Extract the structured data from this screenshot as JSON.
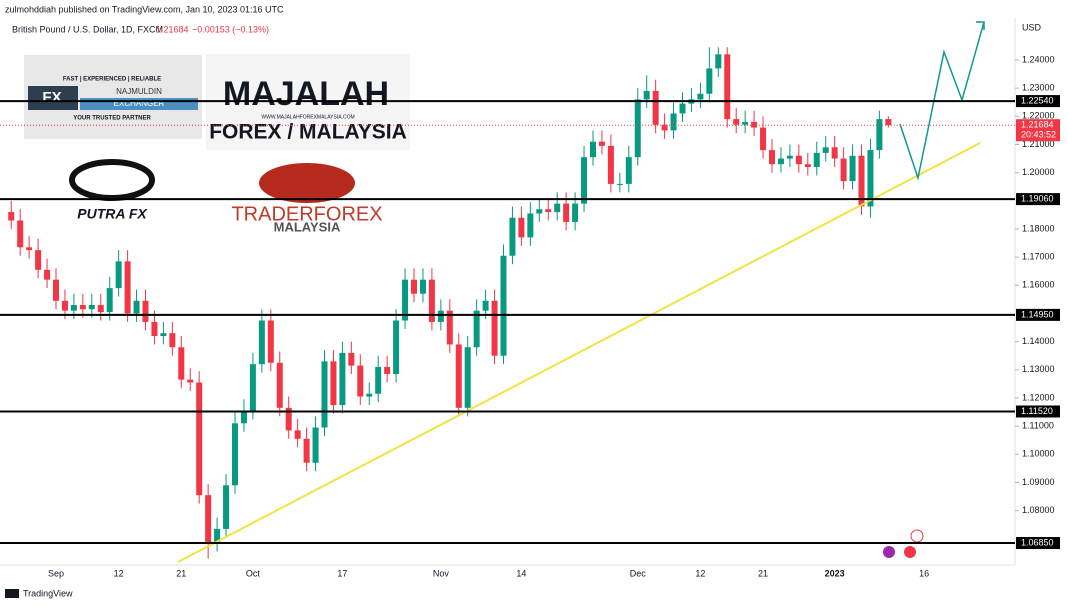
{
  "chart_data": {
    "type": "candlestick",
    "publisher": "zulmohddiah published on TradingView.com, Jan 10, 2023 01:16 UTC",
    "symbol": "British Pound / U.S. Dollar, 1D, FXCM",
    "change": "−0.00153 (−0.13%)",
    "currency": "USD",
    "countdown": "20:43:52",
    "footer": "TradingView",
    "up_color": "#089981",
    "down_color": "#f23645",
    "categories": [
      null,
      null,
      null,
      null,
      null,
      "Sep",
      null,
      null,
      null,
      null,
      null,
      null,
      "12",
      null,
      null,
      null,
      null,
      null,
      null,
      "21",
      null,
      null,
      null,
      null,
      null,
      null,
      null,
      "Oct",
      null,
      null,
      null,
      null,
      null,
      null,
      null,
      null,
      null,
      "17",
      null,
      null,
      null,
      null,
      null,
      null,
      null,
      null,
      null,
      null,
      "Nov",
      null,
      null,
      null,
      null,
      null,
      null,
      null,
      null,
      "14",
      null,
      null,
      null,
      null,
      null,
      null,
      null,
      null,
      null,
      null,
      null,
      null,
      "Dec",
      null,
      null,
      null,
      null,
      null,
      null,
      "12",
      null,
      null,
      null,
      null,
      null,
      null,
      "21",
      null,
      null,
      null,
      null,
      null,
      null,
      null,
      "2023",
      null,
      null,
      null,
      null,
      null,
      null,
      null,
      null,
      null,
      "16",
      null,
      null,
      null,
      null,
      null,
      null,
      null,
      null,
      null
    ],
    "open": [
      1.186,
      1.183,
      1.1735,
      1.1725,
      1.1655,
      1.162,
      1.1545,
      1.151,
      1.153,
      1.1515,
      1.153,
      1.1505,
      1.159,
      1.1685,
      1.15,
      1.1545,
      1.147,
      1.142,
      1.143,
      1.138,
      1.1265,
      1.1255,
      1.0855,
      1.0685,
      1.0735,
      1.089,
      1.111,
      1.1155,
      1.132,
      1.1475,
      1.1325,
      1.1165,
      1.1085,
      1.1055,
      1.097,
      1.1095,
      1.133,
      1.1175,
      1.136,
      1.1315,
      1.1205,
      1.1215,
      1.131,
      1.1285,
      1.1475,
      1.162,
      1.157,
      1.162,
      1.147,
      1.151,
      1.139,
      1.1165,
      1.138,
      1.151,
      1.1545,
      1.135,
      1.1705,
      1.184,
      1.177,
      1.1855,
      1.187,
      1.186,
      1.189,
      1.1825,
      1.189,
      1.2055,
      1.211,
      1.2095,
      1.196,
      1.196,
      1.2055,
      1.226,
      1.229,
      1.217,
      1.215,
      1.221,
      1.2245,
      1.226,
      1.228,
      1.237,
      1.242,
      1.219,
      1.217,
      1.218,
      1.216,
      1.208,
      1.203,
      1.205,
      1.206,
      1.203,
      1.202,
      1.207,
      1.209,
      1.205,
      1.197,
      1.206,
      1.188,
      1.208,
      1.219,
      null,
      null,
      null,
      null,
      null,
      null,
      null,
      null,
      null,
      null,
      null,
      null,
      null
    ],
    "high": [
      1.19,
      1.187,
      1.1775,
      1.1765,
      1.1695,
      1.166,
      1.1585,
      1.157,
      1.157,
      1.157,
      1.157,
      1.163,
      1.1725,
      1.1725,
      1.1585,
      1.1585,
      1.151,
      1.147,
      1.147,
      1.142,
      1.1305,
      1.1295,
      1.0895,
      1.0775,
      1.093,
      1.115,
      1.1195,
      1.136,
      1.1515,
      1.1515,
      1.1365,
      1.1205,
      1.1125,
      1.1095,
      1.1135,
      1.137,
      1.137,
      1.14,
      1.14,
      1.1355,
      1.1255,
      1.135,
      1.135,
      1.1515,
      1.166,
      1.166,
      1.166,
      1.166,
      1.155,
      1.155,
      1.143,
      1.142,
      1.155,
      1.1585,
      1.1585,
      1.1745,
      1.188,
      1.188,
      1.1895,
      1.191,
      1.191,
      1.193,
      1.193,
      1.193,
      1.2095,
      1.215,
      1.215,
      1.2135,
      1.2,
      1.2095,
      1.23,
      1.2345,
      1.233,
      1.221,
      1.225,
      1.2285,
      1.23,
      1.232,
      1.2445,
      1.2445,
      1.2445,
      1.223,
      1.222,
      1.222,
      1.22,
      1.212,
      1.209,
      1.21,
      1.21,
      1.207,
      1.211,
      1.213,
      1.213,
      1.209,
      1.21,
      1.21,
      1.212,
      1.222,
      1.22,
      null,
      null,
      null,
      null,
      null,
      null,
      null,
      null,
      null,
      null,
      null,
      null,
      null
    ],
    "low": [
      1.18,
      1.1705,
      1.1695,
      1.1625,
      1.159,
      1.1515,
      1.148,
      1.148,
      1.1485,
      1.1485,
      1.1475,
      1.1475,
      1.156,
      1.147,
      1.147,
      1.144,
      1.139,
      1.139,
      1.135,
      1.1235,
      1.1225,
      1.0825,
      1.063,
      1.0655,
      1.0705,
      1.086,
      1.108,
      1.1125,
      1.129,
      1.1295,
      1.1135,
      1.1055,
      1.1025,
      1.094,
      1.094,
      1.1065,
      1.1145,
      1.1145,
      1.1285,
      1.1175,
      1.1175,
      1.1185,
      1.1255,
      1.1255,
      1.1445,
      1.154,
      1.154,
      1.144,
      1.144,
      1.136,
      1.1135,
      1.1135,
      1.135,
      1.148,
      1.132,
      1.132,
      1.1675,
      1.174,
      1.174,
      1.1825,
      1.183,
      1.183,
      1.1795,
      1.1795,
      1.186,
      1.2025,
      1.2065,
      1.193,
      1.193,
      1.193,
      1.2025,
      1.223,
      1.214,
      1.212,
      1.212,
      1.218,
      1.2215,
      1.223,
      1.225,
      1.234,
      1.216,
      1.214,
      1.214,
      1.213,
      1.205,
      1.2,
      1.2,
      1.202,
      1.2,
      1.199,
      1.199,
      1.204,
      1.202,
      1.194,
      1.194,
      1.185,
      1.184,
      1.205,
      1.216,
      null,
      null,
      null,
      null,
      null,
      null,
      null,
      null,
      null,
      null,
      null,
      null,
      null
    ],
    "close": [
      1.183,
      1.1735,
      1.1725,
      1.1655,
      1.162,
      1.1545,
      1.151,
      1.153,
      1.1515,
      1.153,
      1.1505,
      1.159,
      1.1685,
      1.15,
      1.1545,
      1.147,
      1.142,
      1.143,
      1.138,
      1.1265,
      1.1255,
      1.0855,
      1.0685,
      1.0735,
      1.089,
      1.111,
      1.1155,
      1.132,
      1.1475,
      1.1325,
      1.1165,
      1.1085,
      1.1055,
      1.097,
      1.1095,
      1.133,
      1.1175,
      1.136,
      1.1315,
      1.1205,
      1.1215,
      1.131,
      1.1285,
      1.1475,
      1.162,
      1.157,
      1.162,
      1.147,
      1.151,
      1.139,
      1.1165,
      1.138,
      1.151,
      1.1545,
      1.135,
      1.1705,
      1.184,
      1.177,
      1.1855,
      1.187,
      1.186,
      1.189,
      1.1825,
      1.189,
      1.2055,
      1.211,
      1.2095,
      1.196,
      1.196,
      1.2055,
      1.226,
      1.229,
      1.217,
      1.215,
      1.221,
      1.2245,
      1.226,
      1.228,
      1.237,
      1.242,
      1.219,
      1.217,
      1.218,
      1.216,
      1.208,
      1.203,
      1.205,
      1.206,
      1.203,
      1.202,
      1.207,
      1.209,
      1.205,
      1.197,
      1.206,
      1.188,
      1.208,
      1.219,
      1.21684,
      null,
      null,
      null,
      null,
      null,
      null,
      null,
      null,
      null,
      null,
      null,
      null,
      null
    ],
    "ylim": [
      1.0607,
      1.2549
    ],
    "yticks": [
      {
        "value": 1.24,
        "label": "1.24000"
      },
      {
        "value": 1.23,
        "label": "1.23000"
      },
      {
        "value": 1.22,
        "label": "1.22000"
      },
      {
        "value": 1.21,
        "label": "1.21000"
      },
      {
        "value": 1.2,
        "label": "1.20000"
      },
      {
        "value": 1.18,
        "label": "1.18000"
      },
      {
        "value": 1.17,
        "label": "1.17000"
      },
      {
        "value": 1.16,
        "label": "1.16000"
      },
      {
        "value": 1.14,
        "label": "1.14000"
      },
      {
        "value": 1.13,
        "label": "1.13000"
      },
      {
        "value": 1.12,
        "label": "1.12000"
      },
      {
        "value": 1.11,
        "label": "1.11000"
      },
      {
        "value": 1.1,
        "label": "1.10000"
      },
      {
        "value": 1.09,
        "label": "1.09000"
      },
      {
        "value": 1.08,
        "label": "1.08000"
      }
    ],
    "levels": [
      {
        "value": 1.2254,
        "label": "1.22540"
      },
      {
        "value": 1.1906,
        "label": "1.19060"
      },
      {
        "value": 1.1495,
        "label": "1.14950"
      },
      {
        "value": 1.1152,
        "label": "1.11520"
      },
      {
        "value": 1.0685,
        "label": "1.06850"
      }
    ],
    "logos": {
      "tagline": "FAST | EXPERIENCED | RELIABLE",
      "fx": "FX",
      "najmuldin": "NAJMULDIN",
      "exchanger": "EXCHANGER",
      "partner": "YOUR TRUSTED PARTNER",
      "majalah": "MAJALAH",
      "forex_malaysia": "FOREX / MALAYSIA",
      "url": "WWW.MAJALAHFOREXMALAYSIA.COM",
      "putra": "PUTRA FX",
      "traderforex": "TRADERFOREX",
      "malaysia": "MALAYSIA"
    }
  }
}
